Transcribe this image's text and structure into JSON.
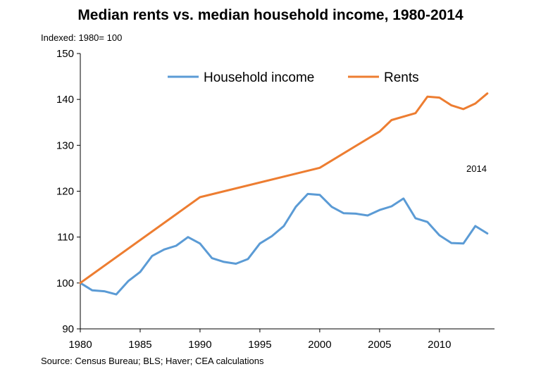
{
  "chart_data": {
    "type": "line",
    "title": "Median rents vs. median household income, 1980-2014",
    "subtitle": "Indexed: 1980= 100",
    "source": "Source: Census Bureau; BLS; Haver; CEA calculations",
    "annotation": "2014",
    "xlim": [
      1980,
      2014.6
    ],
    "ylim": [
      90,
      150
    ],
    "x_ticks": [
      1980,
      1985,
      1990,
      1995,
      2000,
      2005,
      2010
    ],
    "y_ticks": [
      90,
      100,
      110,
      120,
      130,
      140,
      150
    ],
    "grid": false,
    "legend_placement": "top",
    "series": [
      {
        "name": "Household income",
        "color": "#5b9bd5",
        "x": [
          1980,
          1981,
          1982,
          1983,
          1984,
          1985,
          1986,
          1987,
          1988,
          1989,
          1990,
          1991,
          1992,
          1993,
          1994,
          1995,
          1996,
          1997,
          1998,
          1999,
          2000,
          2001,
          2002,
          2003,
          2004,
          2005,
          2006,
          2007,
          2008,
          2009,
          2010,
          2011,
          2012,
          2013,
          2014
        ],
        "y": [
          100,
          98.4,
          98.2,
          97.5,
          100.4,
          102.4,
          105.9,
          107.3,
          108.1,
          110.0,
          108.6,
          105.4,
          104.6,
          104.2,
          105.2,
          108.6,
          110.2,
          112.4,
          116.6,
          119.4,
          119.2,
          116.6,
          115.2,
          115.1,
          114.7,
          115.9,
          116.7,
          118.4,
          114.1,
          113.3,
          110.4,
          108.7,
          108.6,
          112.4,
          110.8
        ]
      },
      {
        "name": "Rents",
        "color": "#ed7d31",
        "x": [
          1980,
          1990,
          2000,
          2005,
          2006,
          2008,
          2009,
          2010,
          2011,
          2012,
          2013,
          2014
        ],
        "y": [
          100,
          118.7,
          125.1,
          133.0,
          135.5,
          137.0,
          140.6,
          140.4,
          138.7,
          137.9,
          139.1,
          141.3
        ]
      }
    ]
  }
}
